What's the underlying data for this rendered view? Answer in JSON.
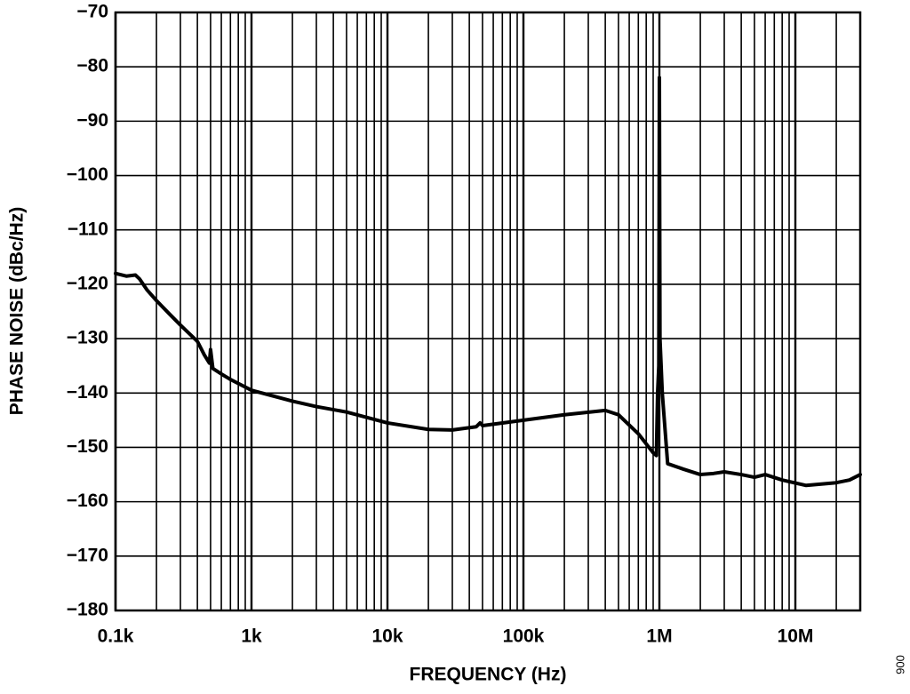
{
  "chart_data": {
    "type": "line",
    "x_label": "FREQUENCY (Hz)",
    "y_label": "PHASE NOISE (dBc/Hz)",
    "figure_id": "006",
    "x_log": true,
    "grid": true,
    "color": "#000000",
    "xlim": [
      100,
      30000000
    ],
    "ylim": [
      -180,
      -70
    ],
    "xticks": [
      {
        "value": 100,
        "label": "0.1k"
      },
      {
        "value": 1000,
        "label": "1k"
      },
      {
        "value": 10000,
        "label": "10k"
      },
      {
        "value": 100000,
        "label": "100k"
      },
      {
        "value": 1000000,
        "label": "1M"
      },
      {
        "value": 10000000,
        "label": "10M"
      }
    ],
    "x_minor_ticks": [
      200,
      300,
      400,
      500,
      600,
      700,
      800,
      900,
      2000,
      3000,
      4000,
      5000,
      6000,
      7000,
      8000,
      9000,
      20000,
      30000,
      40000,
      50000,
      60000,
      70000,
      80000,
      90000,
      200000,
      300000,
      400000,
      500000,
      600000,
      700000,
      800000,
      900000,
      2000000,
      3000000,
      4000000,
      5000000,
      6000000,
      7000000,
      8000000,
      9000000,
      20000000
    ],
    "yticks": [
      {
        "value": -70,
        "label": "−70"
      },
      {
        "value": -80,
        "label": "−80"
      },
      {
        "value": -90,
        "label": "−90"
      },
      {
        "value": -100,
        "label": "−100"
      },
      {
        "value": -110,
        "label": "−110"
      },
      {
        "value": -120,
        "label": "−120"
      },
      {
        "value": -130,
        "label": "−130"
      },
      {
        "value": -140,
        "label": "−140"
      },
      {
        "value": -150,
        "label": "−150"
      },
      {
        "value": -160,
        "label": "−160"
      },
      {
        "value": -170,
        "label": "−170"
      },
      {
        "value": -180,
        "label": "−180"
      }
    ],
    "x": [
      100,
      120,
      140,
      150,
      170,
      200,
      250,
      300,
      400,
      450,
      490,
      500,
      520,
      600,
      700,
      1000,
      2000,
      3000,
      5000,
      10000,
      20000,
      30000,
      45000,
      48000,
      50000,
      100000,
      200000,
      400000,
      500000,
      700000,
      900000,
      950000,
      970000,
      990000,
      1000000,
      1010000,
      1050000,
      1150000,
      1500000,
      2000000,
      2500000,
      3000000,
      4000000,
      5000000,
      6000000,
      8000000,
      12000000,
      20000000,
      25000000,
      30000000
    ],
    "values": [
      -118,
      -118.5,
      -118.3,
      -119,
      -121,
      -123,
      -125.5,
      -127.5,
      -130.5,
      -133,
      -134.5,
      -132,
      -135.5,
      -136.5,
      -137.5,
      -139.5,
      -141.5,
      -142.5,
      -143.5,
      -145.5,
      -146.7,
      -146.8,
      -146.2,
      -145.5,
      -146,
      -145,
      -144,
      -143.2,
      -144,
      -147.5,
      -151,
      -151.5,
      -140,
      -135,
      -82,
      -130,
      -140,
      -153,
      -154,
      -155,
      -154.8,
      -154.5,
      -155,
      -155.5,
      -155,
      -156,
      -157,
      -156.5,
      -156,
      -155
    ]
  }
}
